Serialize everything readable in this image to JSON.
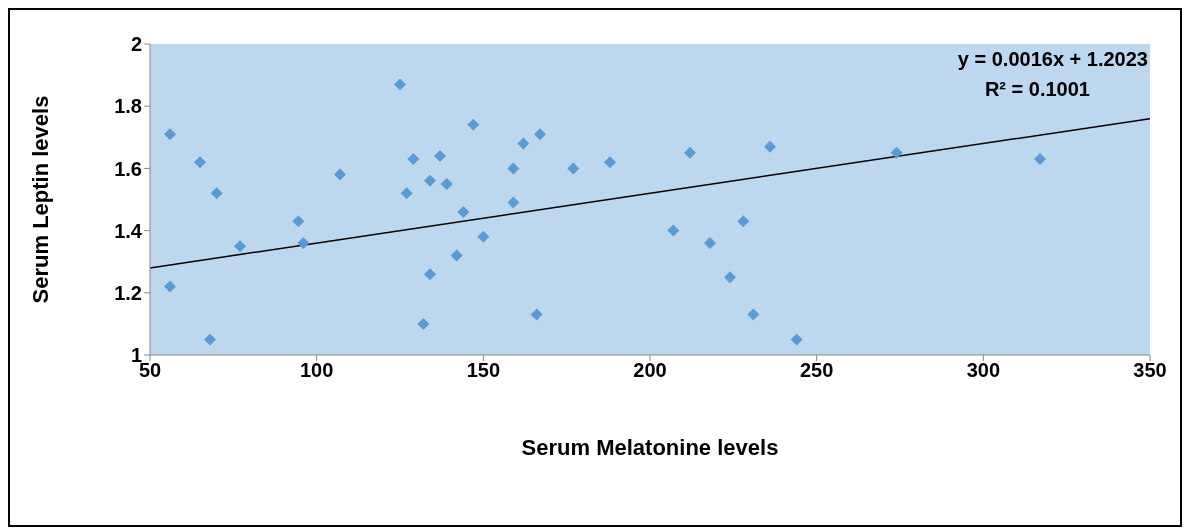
{
  "chart_data": {
    "type": "scatter",
    "xlabel": "Serum Melatonine levels",
    "ylabel": "Serum Leptin  levels",
    "annotations": [
      "y = 0.0016x + 1.2023",
      "R² = 0.1001"
    ],
    "xlim": [
      50,
      350
    ],
    "xticks": [
      50,
      100,
      150,
      200,
      250,
      300,
      350
    ],
    "ylim": [
      1,
      2
    ],
    "yticks": [
      1,
      1.2,
      1.4,
      1.6,
      1.8,
      2
    ],
    "series": [
      {
        "marker": "diamond",
        "color": "#5b9bd5",
        "x": [
          56,
          56,
          65,
          68,
          70,
          77,
          94.5,
          96,
          107,
          125,
          127,
          129,
          132,
          134,
          134,
          137,
          139,
          142,
          144,
          147,
          150,
          159,
          159,
          162,
          166,
          167,
          177,
          188,
          207,
          212,
          218,
          224,
          228,
          231,
          236,
          244,
          274,
          317
        ],
        "values": [
          1.71,
          1.22,
          1.62,
          1.05,
          1.52,
          1.35,
          1.43,
          1.36,
          1.58,
          1.87,
          1.52,
          1.63,
          1.1,
          1.56,
          1.26,
          1.64,
          1.55,
          1.32,
          1.46,
          1.74,
          1.38,
          1.6,
          1.49,
          1.68,
          1.13,
          1.71,
          1.6,
          1.62,
          1.4,
          1.65,
          1.36,
          1.25,
          1.43,
          1.13,
          1.67,
          1.05,
          1.65,
          1.63
        ]
      },
      {
        "type": "line",
        "color": "#000000",
        "x": [
          50,
          350
        ],
        "values": [
          1.28,
          1.76
        ]
      }
    ]
  }
}
